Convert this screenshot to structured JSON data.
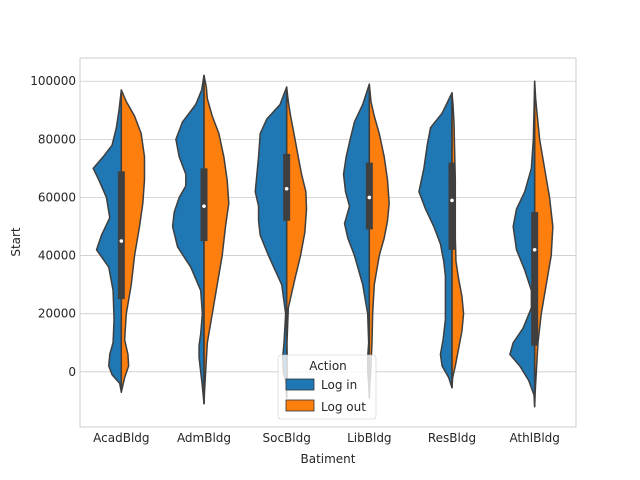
{
  "chart_data": {
    "type": "violin",
    "split": true,
    "xlabel": "Batiment",
    "ylabel": "Start",
    "categories": [
      "AcadBldg",
      "AdmBldg",
      "SocBldg",
      "LibBldg",
      "ResBldg",
      "AthlBldg"
    ],
    "ylim": [
      -19000,
      108000
    ],
    "yticks": [
      0,
      20000,
      40000,
      60000,
      80000,
      100000
    ],
    "ytick_labels": [
      "0",
      "20000",
      "40000",
      "60000",
      "80000",
      "100000"
    ],
    "grid": true,
    "legend": {
      "title": "Action",
      "placement": "lower center",
      "entries": [
        {
          "name": "Log in",
          "color": "#1f77b4"
        },
        {
          "name": "Log out",
          "color": "#ff7f0e"
        }
      ]
    },
    "series": [
      {
        "name": "Log in",
        "color": "#1f77b4",
        "range": [
          [
            -7000,
            97000
          ],
          [
            -11000,
            102000
          ],
          [
            -9000,
            98000
          ],
          [
            -9000,
            99000
          ],
          [
            -5500,
            96000
          ],
          [
            -12000,
            100000
          ]
        ],
        "density_profile": [
          [
            [
              -7000,
              0
            ],
            [
              -4000,
              0.05
            ],
            [
              -1000,
              0.28
            ],
            [
              2000,
              0.38
            ],
            [
              6000,
              0.35
            ],
            [
              10000,
              0.25
            ],
            [
              18000,
              0.22
            ],
            [
              28000,
              0.25
            ],
            [
              36000,
              0.38
            ],
            [
              42000,
              0.75
            ],
            [
              47000,
              0.6
            ],
            [
              53000,
              0.35
            ],
            [
              60000,
              0.45
            ],
            [
              66000,
              0.68
            ],
            [
              70000,
              0.85
            ],
            [
              74000,
              0.55
            ],
            [
              78000,
              0.28
            ],
            [
              84000,
              0.15
            ],
            [
              90000,
              0.07
            ],
            [
              97000,
              0
            ]
          ],
          [
            [
              -11000,
              0
            ],
            [
              -5000,
              0.05
            ],
            [
              0,
              0.1
            ],
            [
              5000,
              0.15
            ],
            [
              9000,
              0.15
            ],
            [
              13000,
              0.1
            ],
            [
              20000,
              0.05
            ],
            [
              28000,
              0.1
            ],
            [
              36000,
              0.4
            ],
            [
              43000,
              0.8
            ],
            [
              50000,
              0.95
            ],
            [
              55000,
              0.9
            ],
            [
              60000,
              0.75
            ],
            [
              64000,
              0.55
            ],
            [
              68000,
              0.55
            ],
            [
              74000,
              0.75
            ],
            [
              80000,
              0.85
            ],
            [
              86000,
              0.65
            ],
            [
              92000,
              0.25
            ],
            [
              97000,
              0.07
            ],
            [
              102000,
              0
            ]
          ],
          [
            [
              -9000,
              0
            ],
            [
              -4000,
              0.02
            ],
            [
              0,
              0.1
            ],
            [
              5000,
              0.12
            ],
            [
              10000,
              0.08
            ],
            [
              20000,
              0.03
            ],
            [
              30000,
              0.15
            ],
            [
              40000,
              0.55
            ],
            [
              47000,
              0.8
            ],
            [
              52000,
              0.85
            ],
            [
              57000,
              0.85
            ],
            [
              62000,
              0.95
            ],
            [
              68000,
              0.9
            ],
            [
              74000,
              0.85
            ],
            [
              82000,
              0.8
            ],
            [
              87000,
              0.6
            ],
            [
              92000,
              0.2
            ],
            [
              98000,
              0
            ]
          ],
          [
            [
              -9000,
              0
            ],
            [
              -4000,
              0.02
            ],
            [
              0,
              0.05
            ],
            [
              5000,
              0.05
            ],
            [
              10000,
              0.02
            ],
            [
              20000,
              0.05
            ],
            [
              30000,
              0.2
            ],
            [
              40000,
              0.45
            ],
            [
              46000,
              0.65
            ],
            [
              51000,
              0.75
            ],
            [
              57000,
              0.6
            ],
            [
              62000,
              0.72
            ],
            [
              68000,
              0.78
            ],
            [
              74000,
              0.7
            ],
            [
              80000,
              0.58
            ],
            [
              86000,
              0.45
            ],
            [
              92000,
              0.2
            ],
            [
              99000,
              0
            ]
          ],
          [
            [
              -5500,
              0
            ],
            [
              -2000,
              0.1
            ],
            [
              2000,
              0.3
            ],
            [
              6000,
              0.35
            ],
            [
              11000,
              0.27
            ],
            [
              18000,
              0.2
            ],
            [
              26000,
              0.2
            ],
            [
              33000,
              0.2
            ],
            [
              38000,
              0.25
            ],
            [
              44000,
              0.35
            ],
            [
              50000,
              0.55
            ],
            [
              56000,
              0.8
            ],
            [
              62000,
              1.0
            ],
            [
              70000,
              0.85
            ],
            [
              78000,
              0.75
            ],
            [
              84000,
              0.65
            ],
            [
              89000,
              0.3
            ],
            [
              96000,
              0
            ]
          ],
          [
            [
              -12000,
              0
            ],
            [
              -8000,
              0.02
            ],
            [
              -3000,
              0.18
            ],
            [
              2000,
              0.45
            ],
            [
              6000,
              0.75
            ],
            [
              10000,
              0.65
            ],
            [
              15000,
              0.35
            ],
            [
              22000,
              0.1
            ],
            [
              28000,
              0.1
            ],
            [
              35000,
              0.3
            ],
            [
              42000,
              0.55
            ],
            [
              50000,
              0.65
            ],
            [
              56000,
              0.55
            ],
            [
              62000,
              0.3
            ],
            [
              70000,
              0.1
            ],
            [
              80000,
              0.04
            ],
            [
              90000,
              0.02
            ],
            [
              100000,
              0
            ]
          ]
        ]
      },
      {
        "name": "Log out",
        "color": "#ff7f0e",
        "range": [
          [
            -7000,
            97000
          ],
          [
            -11000,
            102000
          ],
          [
            -9000,
            98000
          ],
          [
            -9000,
            99000
          ],
          [
            -5500,
            96000
          ],
          [
            -12000,
            100000
          ]
        ],
        "density_profile": [
          [
            [
              -7000,
              0
            ],
            [
              -2000,
              0.1
            ],
            [
              2000,
              0.22
            ],
            [
              6000,
              0.2
            ],
            [
              11000,
              0.1
            ],
            [
              20000,
              0.15
            ],
            [
              30000,
              0.3
            ],
            [
              40000,
              0.4
            ],
            [
              50000,
              0.55
            ],
            [
              58000,
              0.65
            ],
            [
              66000,
              0.7
            ],
            [
              74000,
              0.7
            ],
            [
              82000,
              0.6
            ],
            [
              88000,
              0.4
            ],
            [
              93000,
              0.15
            ],
            [
              97000,
              0
            ]
          ],
          [
            [
              -11000,
              0
            ],
            [
              -6000,
              0.02
            ],
            [
              0,
              0.05
            ],
            [
              10000,
              0.1
            ],
            [
              20000,
              0.25
            ],
            [
              30000,
              0.4
            ],
            [
              40000,
              0.55
            ],
            [
              50000,
              0.65
            ],
            [
              58000,
              0.75
            ],
            [
              66000,
              0.7
            ],
            [
              74000,
              0.6
            ],
            [
              82000,
              0.45
            ],
            [
              88000,
              0.25
            ],
            [
              94000,
              0.1
            ],
            [
              98000,
              0.07
            ],
            [
              102000,
              0
            ]
          ],
          [
            [
              -9000,
              0
            ],
            [
              -3000,
              0.02
            ],
            [
              0,
              0.02
            ],
            [
              10000,
              0.01
            ],
            [
              22000,
              0.05
            ],
            [
              32000,
              0.25
            ],
            [
              40000,
              0.42
            ],
            [
              48000,
              0.55
            ],
            [
              56000,
              0.6
            ],
            [
              62000,
              0.58
            ],
            [
              68000,
              0.45
            ],
            [
              74000,
              0.35
            ],
            [
              82000,
              0.22
            ],
            [
              88000,
              0.12
            ],
            [
              93000,
              0.05
            ],
            [
              98000,
              0
            ]
          ],
          [
            [
              -9000,
              0
            ],
            [
              -3000,
              0.02
            ],
            [
              2000,
              0.05
            ],
            [
              10000,
              0.08
            ],
            [
              20000,
              0.1
            ],
            [
              30000,
              0.15
            ],
            [
              40000,
              0.3
            ],
            [
              46000,
              0.45
            ],
            [
              52000,
              0.55
            ],
            [
              58000,
              0.6
            ],
            [
              66000,
              0.55
            ],
            [
              74000,
              0.45
            ],
            [
              82000,
              0.3
            ],
            [
              88000,
              0.15
            ],
            [
              93000,
              0.05
            ],
            [
              99000,
              0
            ]
          ],
          [
            [
              -5500,
              0
            ],
            [
              -2000,
              0.02
            ],
            [
              2000,
              0.1
            ],
            [
              8000,
              0.2
            ],
            [
              14000,
              0.3
            ],
            [
              20000,
              0.35
            ],
            [
              26000,
              0.3
            ],
            [
              32000,
              0.2
            ],
            [
              38000,
              0.12
            ],
            [
              46000,
              0.1
            ],
            [
              56000,
              0.1
            ],
            [
              66000,
              0.1
            ],
            [
              76000,
              0.08
            ],
            [
              86000,
              0.06
            ],
            [
              92000,
              0.03
            ],
            [
              96000,
              0
            ]
          ],
          [
            [
              -12000,
              0
            ],
            [
              -6000,
              0.02
            ],
            [
              0,
              0.05
            ],
            [
              10000,
              0.1
            ],
            [
              20000,
              0.2
            ],
            [
              30000,
              0.35
            ],
            [
              40000,
              0.5
            ],
            [
              50000,
              0.55
            ],
            [
              60000,
              0.45
            ],
            [
              70000,
              0.3
            ],
            [
              80000,
              0.15
            ],
            [
              88000,
              0.08
            ],
            [
              94000,
              0.03
            ],
            [
              100000,
              0
            ]
          ]
        ]
      }
    ],
    "inner_box": [
      {
        "q1": 25000,
        "median": 45000,
        "q3": 69000
      },
      {
        "q1": 45000,
        "median": 57000,
        "q3": 70000
      },
      {
        "q1": 52000,
        "median": 63000,
        "q3": 75000
      },
      {
        "q1": 49000,
        "median": 60000,
        "q3": 72000
      },
      {
        "q1": 42000,
        "median": 59000,
        "q3": 72000
      },
      {
        "q1": 9000,
        "median": 42000,
        "q3": 55000
      }
    ]
  }
}
